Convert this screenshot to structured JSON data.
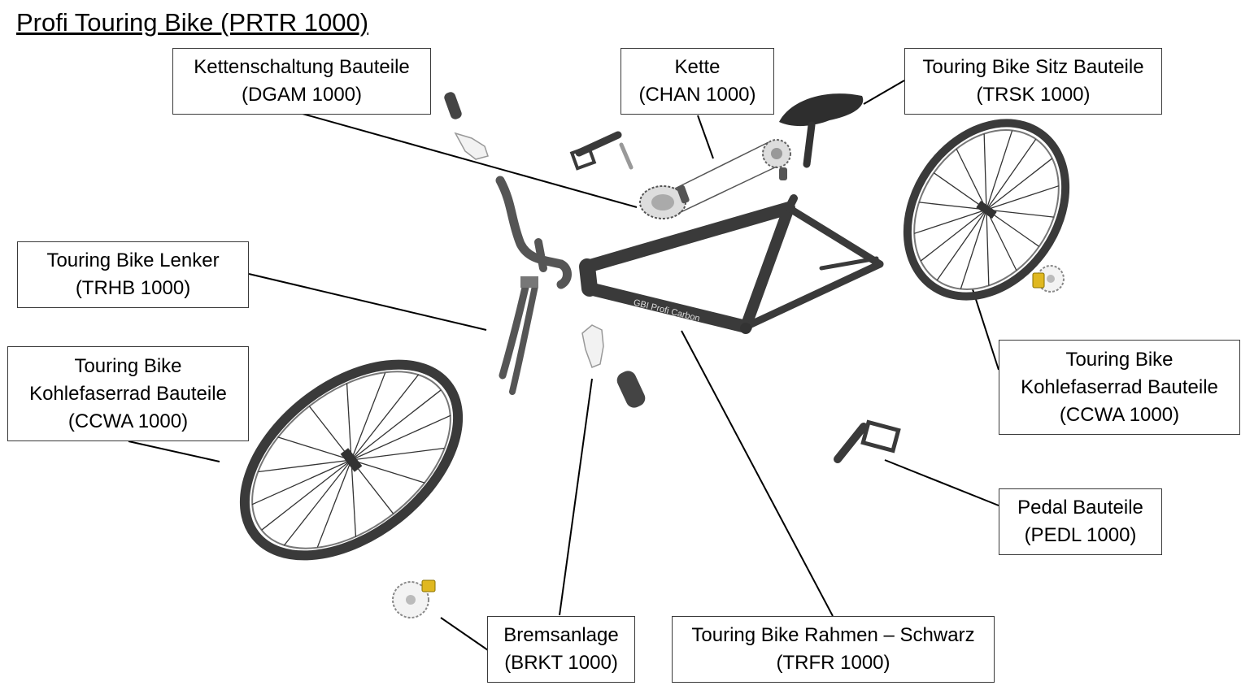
{
  "title": "Profi Touring Bike (PRTR 1000)",
  "frame_text": "GBI Profi Carbon",
  "colors": {
    "part_dark": "#3a3a3a",
    "part_light": "#e8e8e8",
    "caliper": "#e0b820",
    "leader": "#000000"
  },
  "labels": {
    "derailleur": [
      "Kettenschaltung Bauteile",
      "(DGAM 1000)"
    ],
    "chain": [
      "Kette",
      "(CHAN 1000)"
    ],
    "seat": [
      "Touring Bike Sitz Bauteile",
      "(TRSK 1000)"
    ],
    "handlebar": [
      "Touring Bike Lenker",
      "(TRHB 1000)"
    ],
    "wheel_front": [
      "Touring Bike",
      "Kohlefaserrad Bauteile",
      "(CCWA 1000)"
    ],
    "wheel_rear": [
      "Touring Bike",
      "Kohlefaserrad Bauteile",
      "(CCWA 1000)"
    ],
    "pedal": [
      "Pedal Bauteile",
      "(PEDL 1000)"
    ],
    "brake": [
      "Bremsanlage",
      "(BRKT 1000)"
    ],
    "frame": [
      "Touring Bike Rahmen – Schwarz",
      "(TRFR 1000)"
    ]
  }
}
